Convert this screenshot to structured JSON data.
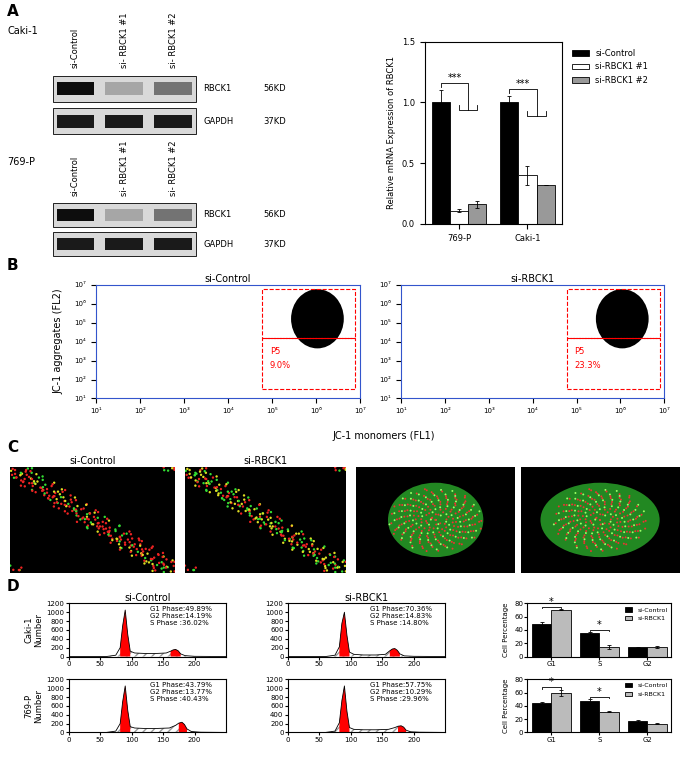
{
  "panel_labels": [
    "A",
    "B",
    "C",
    "D"
  ],
  "chart_data": [
    {
      "type": "blot",
      "cell_line": "Caki-1",
      "lanes": [
        "si-Control",
        "si- RBCK1 #1",
        "si- RBCK1 #2"
      ],
      "bands": [
        {
          "name": "RBCK1",
          "size": "56KD"
        },
        {
          "name": "GAPDH",
          "size": "37KD"
        }
      ]
    },
    {
      "type": "blot",
      "cell_line": "769-P",
      "lanes": [
        "si-Control",
        "si- RBCK1 #1",
        "si- RBCK1 #2"
      ],
      "bands": [
        {
          "name": "RBCK1",
          "size": "56KD"
        },
        {
          "name": "GAPDH",
          "size": "37KD"
        }
      ]
    },
    {
      "type": "bar",
      "ylabel": "Relative mRNA Expression of RBCK1",
      "categories": [
        "769-P",
        "Caki-1"
      ],
      "series": [
        {
          "name": "si-Control",
          "color": "#000000",
          "values": [
            1.0,
            1.0
          ],
          "errors": [
            0.1,
            0.05
          ]
        },
        {
          "name": "si-RBCK1 #1",
          "color": "#ffffff",
          "values": [
            0.11,
            0.4
          ],
          "errors": [
            0.01,
            0.08
          ]
        },
        {
          "name": "si-RBCK1 #2",
          "color": "#999999",
          "values": [
            0.16,
            0.32
          ],
          "errors": [
            0.03,
            0.0
          ]
        }
      ],
      "ylim": [
        0,
        1.5
      ],
      "yticks": [
        {
          "value": 0,
          "label": "0.0"
        },
        {
          "value": 0.5,
          "label": "0.5"
        },
        {
          "value": 1.0,
          "label": "1.0"
        },
        {
          "value": 1.5,
          "label": "1.5"
        }
      ],
      "legend": "right",
      "significance": [
        {
          "category": "769-P",
          "label": "***"
        },
        {
          "category": "Caki-1",
          "label": "***"
        }
      ]
    },
    {
      "type": "flow_scatter",
      "title": "si-Control",
      "xlabel": "JC-1 monomers (FL1)",
      "ylabel": "JC-1 aggregates (FL2)",
      "log": true,
      "xlim": [
        10,
        10000000
      ],
      "ylim": [
        10,
        10000000
      ],
      "xticks": [
        {
          "value": 10,
          "label": "10¹"
        },
        {
          "value": 100,
          "label": "10²"
        },
        {
          "value": 1000,
          "label": "10³"
        },
        {
          "value": 10000,
          "label": "10⁴"
        },
        {
          "value": 100000,
          "label": "10⁵"
        },
        {
          "value": 1000000,
          "label": "10⁶"
        },
        {
          "value": 10000000,
          "label": "10⁷"
        }
      ],
      "yticks": [
        {
          "value": 10,
          "label": "10¹"
        },
        {
          "value": 100,
          "label": "10²"
        },
        {
          "value": 1000,
          "label": "10³"
        },
        {
          "value": 10000,
          "label": "10⁴"
        },
        {
          "value": 100000,
          "label": "10⁵"
        },
        {
          "value": 1000000,
          "label": "10⁶"
        },
        {
          "value": 10000000,
          "label": "10⁷"
        }
      ],
      "gates": [
        {
          "name": "P5",
          "x": [
            60000,
            8000000
          ],
          "y": [
            30,
            15000
          ],
          "value": 9.0,
          "label": "9.0%"
        },
        {
          "x": [
            60000,
            8000000
          ],
          "y": [
            15000,
            6000000
          ]
        }
      ],
      "color": "#ff0000"
    },
    {
      "type": "flow_scatter",
      "title": "si-RBCK1",
      "log": true,
      "xlim": [
        10,
        10000000
      ],
      "ylim": [
        10,
        10000000
      ],
      "xticks": [
        {
          "value": 10,
          "label": "10¹"
        },
        {
          "value": 100,
          "label": "10²"
        },
        {
          "value": 1000,
          "label": "10³"
        },
        {
          "value": 10000,
          "label": "10⁴"
        },
        {
          "value": 100000,
          "label": "10⁵"
        },
        {
          "value": 1000000,
          "label": "10⁶"
        },
        {
          "value": 10000000,
          "label": "10⁷"
        }
      ],
      "yticks": [
        {
          "value": 10,
          "label": "10¹"
        },
        {
          "value": 100,
          "label": "10²"
        },
        {
          "value": 1000,
          "label": "10³"
        },
        {
          "value": 10000,
          "label": "10⁴"
        },
        {
          "value": 100000,
          "label": "10⁵"
        },
        {
          "value": 1000000,
          "label": "10⁶"
        },
        {
          "value": 10000000,
          "label": "10⁷"
        }
      ],
      "gates": [
        {
          "name": "P5",
          "x": [
            60000,
            8000000
          ],
          "y": [
            30,
            15000
          ],
          "value": 23.3,
          "label": "23.3%"
        },
        {
          "x": [
            60000,
            8000000
          ],
          "y": [
            15000,
            6000000
          ]
        }
      ],
      "color": "#ff0000"
    },
    {
      "type": "image",
      "title": "si-Control"
    },
    {
      "type": "image",
      "title": "si-RBCK1"
    },
    {
      "type": "image"
    },
    {
      "type": "image"
    },
    {
      "type": "area",
      "title": "si-Control",
      "ylabel": "Caki-1\nNumber",
      "color": "#ff0000",
      "x": [
        0,
        60,
        75,
        82,
        86,
        90,
        94,
        98,
        105,
        120,
        140,
        155,
        162,
        166,
        170,
        174,
        178,
        185,
        200,
        250
      ],
      "values": [
        0,
        0,
        30,
        200,
        700,
        1050,
        500,
        120,
        80,
        70,
        70,
        80,
        120,
        150,
        160,
        130,
        60,
        20,
        5,
        0
      ],
      "xlim": [
        0,
        250
      ],
      "xticks": [
        0,
        50,
        100,
        150,
        200
      ],
      "ylim": [
        0,
        1200
      ],
      "yticks": [
        0,
        200,
        400,
        600,
        800,
        1000,
        1200
      ],
      "annotations": [
        "G1 Phase:49.89%",
        "G2 Phase:14.19%",
        "S Phase :36.02%"
      ]
    },
    {
      "type": "area",
      "title": "si-RBCK1",
      "color": "#ff0000",
      "x": [
        0,
        60,
        75,
        82,
        86,
        90,
        94,
        98,
        105,
        120,
        140,
        155,
        162,
        166,
        170,
        174,
        178,
        185,
        200,
        250
      ],
      "values": [
        0,
        0,
        30,
        220,
        750,
        1000,
        480,
        100,
        50,
        35,
        35,
        50,
        130,
        170,
        180,
        140,
        60,
        15,
        5,
        0
      ],
      "xlim": [
        0,
        250
      ],
      "xticks": [
        0,
        50,
        100,
        150,
        200
      ],
      "ylim": [
        0,
        1200
      ],
      "yticks": [
        0,
        200,
        400,
        600,
        800,
        1000,
        1200
      ],
      "annotations": [
        "G1 Phase:70.36%",
        "G2 Phase:14.83%",
        "S Phase :14.80%"
      ]
    },
    {
      "type": "area",
      "ylabel": "769-P\nNumber",
      "color": "#ff0000",
      "x": [
        0,
        60,
        75,
        82,
        86,
        90,
        94,
        98,
        105,
        120,
        140,
        160,
        170,
        175,
        180,
        184,
        188,
        195,
        210,
        250
      ],
      "values": [
        0,
        0,
        30,
        200,
        700,
        1050,
        500,
        130,
        100,
        90,
        90,
        100,
        160,
        210,
        230,
        180,
        80,
        20,
        5,
        0
      ],
      "xlim": [
        0,
        250
      ],
      "xticks": [
        0,
        50,
        100,
        150,
        200
      ],
      "ylim": [
        0,
        1200
      ],
      "yticks": [
        0,
        200,
        400,
        600,
        800,
        1000,
        1200
      ],
      "annotations": [
        "G1 Phase:43.79%",
        "G2 Phase:13.77%",
        "S Phase :40.43%"
      ]
    },
    {
      "type": "area",
      "color": "#ff0000",
      "x": [
        0,
        60,
        75,
        82,
        86,
        90,
        94,
        98,
        105,
        120,
        140,
        160,
        170,
        175,
        180,
        184,
        188,
        195,
        210,
        250
      ],
      "values": [
        0,
        0,
        30,
        220,
        720,
        1050,
        480,
        110,
        70,
        60,
        60,
        70,
        110,
        140,
        150,
        120,
        50,
        15,
        5,
        0
      ],
      "xlim": [
        0,
        250
      ],
      "xticks": [
        0,
        50,
        100,
        150,
        200
      ],
      "ylim": [
        0,
        1200
      ],
      "yticks": [
        0,
        200,
        400,
        600,
        800,
        1000,
        1200
      ],
      "annotations": [
        "G1 Phase:57.75%",
        "G2 Phase:10.29%",
        "S Phase :29.96%"
      ]
    },
    {
      "type": "bar",
      "ylabel": "Cell Percentage",
      "categories": [
        "G1",
        "S",
        "G2"
      ],
      "series": [
        {
          "name": "si-Control",
          "color": "#000000",
          "values": [
            49.5,
            36,
            14
          ],
          "errors": [
            2.5,
            1.5,
            0.5
          ]
        },
        {
          "name": "si-RBCK1",
          "color": "#bbbbbb",
          "values": [
            70.5,
            15,
            15
          ],
          "errors": [
            0.5,
            3,
            1.5
          ]
        }
      ],
      "ylim": [
        0,
        80
      ],
      "yticks": [
        0,
        20,
        40,
        60,
        80
      ],
      "legend": "upper right",
      "significance": [
        {
          "category": "G1",
          "label": "*"
        },
        {
          "category": "S",
          "label": "*"
        }
      ]
    },
    {
      "type": "bar",
      "ylabel": "Cell Percentage",
      "categories": [
        "G1",
        "S",
        "G2"
      ],
      "series": [
        {
          "name": "si-Control",
          "color": "#000000",
          "values": [
            45,
            47,
            16.5
          ],
          "errors": [
            1.5,
            3,
            1.5
          ]
        },
        {
          "name": "si-RBCK1",
          "color": "#bbbbbb",
          "values": [
            60,
            31.5,
            13
          ],
          "errors": [
            4.5,
            0.5,
            1
          ]
        }
      ],
      "ylim": [
        0,
        80
      ],
      "yticks": [
        0,
        20,
        40,
        60,
        80
      ],
      "legend": "upper right",
      "significance": [
        {
          "category": "G1",
          "label": "*"
        },
        {
          "category": "S",
          "label": "*"
        }
      ]
    }
  ]
}
